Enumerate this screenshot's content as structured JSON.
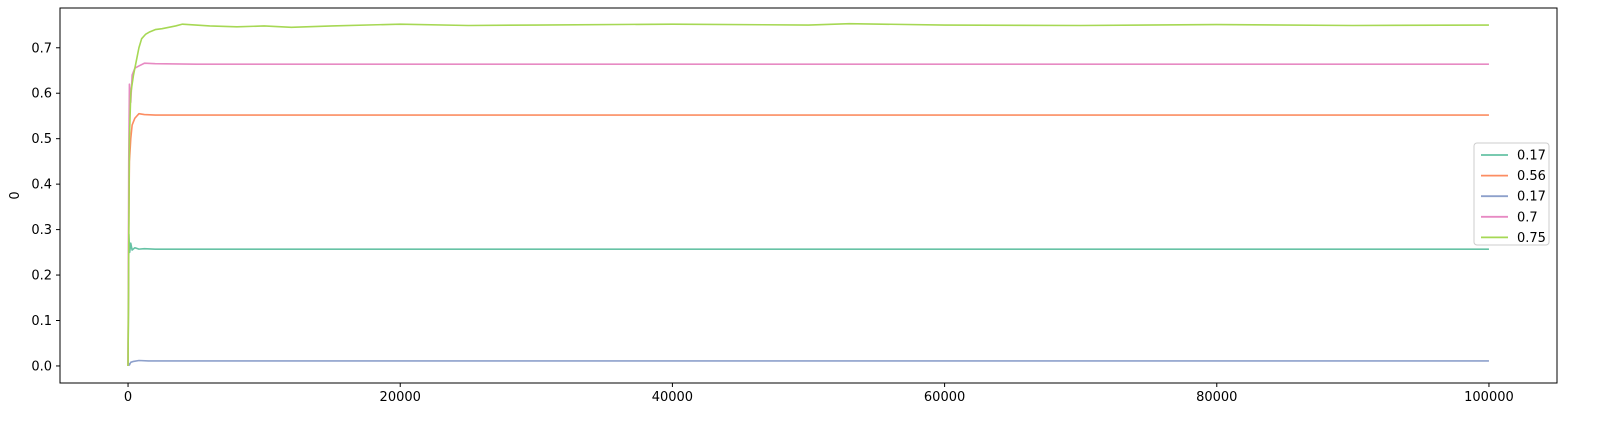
{
  "chart_data": {
    "type": "line",
    "title": "",
    "xlabel": "",
    "ylabel": "0",
    "xlim": [
      -5000,
      105000
    ],
    "ylim": [
      -0.0375,
      0.7875
    ],
    "xticks": [
      0,
      20000,
      40000,
      60000,
      80000,
      100000
    ],
    "xtick_labels": [
      "0",
      "20000",
      "40000",
      "60000",
      "80000",
      "100000"
    ],
    "yticks": [
      0.0,
      0.1,
      0.2,
      0.3,
      0.4,
      0.5,
      0.6,
      0.7
    ],
    "ytick_labels": [
      "0.0",
      "0.1",
      "0.2",
      "0.3",
      "0.4",
      "0.5",
      "0.6",
      "0.7"
    ],
    "grid": false,
    "legend_position": "center-right",
    "series": [
      {
        "name": "0.17",
        "color": "#66c2a5",
        "x": [
          0,
          60,
          120,
          200,
          300,
          500,
          800,
          1200,
          2000,
          5000,
          10000,
          20000,
          40000,
          60000,
          80000,
          100000
        ],
        "y": [
          0.0,
          0.29,
          0.25,
          0.27,
          0.255,
          0.26,
          0.257,
          0.258,
          0.257,
          0.257,
          0.257,
          0.257,
          0.257,
          0.257,
          0.257,
          0.257
        ]
      },
      {
        "name": "0.56",
        "color": "#fc8d62",
        "x": [
          0,
          50,
          100,
          200,
          300,
          500,
          800,
          1200,
          2000,
          5000,
          10000,
          20000,
          40000,
          60000,
          80000,
          100000
        ],
        "y": [
          0.0,
          0.3,
          0.45,
          0.5,
          0.53,
          0.545,
          0.555,
          0.553,
          0.552,
          0.552,
          0.552,
          0.552,
          0.552,
          0.552,
          0.552,
          0.552
        ]
      },
      {
        "name": "0.17",
        "color": "#8da0cb",
        "x": [
          0,
          50,
          100,
          200,
          400,
          800,
          1500,
          5000,
          20000,
          40000,
          60000,
          80000,
          100000
        ],
        "y": [
          0.0,
          0.005,
          0.002,
          0.008,
          0.01,
          0.012,
          0.011,
          0.011,
          0.011,
          0.011,
          0.011,
          0.011,
          0.011
        ]
      },
      {
        "name": "0.7",
        "color": "#e78ac3",
        "x": [
          0,
          50,
          100,
          200,
          300,
          500,
          800,
          1200,
          2000,
          5000,
          10000,
          20000,
          40000,
          60000,
          80000,
          100000
        ],
        "y": [
          0.0,
          0.45,
          0.62,
          0.58,
          0.64,
          0.655,
          0.66,
          0.666,
          0.665,
          0.664,
          0.664,
          0.664,
          0.664,
          0.664,
          0.664,
          0.664
        ]
      },
      {
        "name": "0.75",
        "color": "#a6d854",
        "x": [
          0,
          100,
          200,
          400,
          600,
          800,
          1000,
          1300,
          1600,
          2000,
          2500,
          3000,
          3500,
          4000,
          5000,
          6000,
          8000,
          10000,
          12000,
          15000,
          20000,
          25000,
          30000,
          40000,
          50000,
          53000,
          60000,
          70000,
          80000,
          90000,
          100000
        ],
        "y": [
          0.0,
          0.5,
          0.6,
          0.64,
          0.67,
          0.7,
          0.72,
          0.73,
          0.735,
          0.74,
          0.742,
          0.745,
          0.748,
          0.752,
          0.75,
          0.748,
          0.746,
          0.748,
          0.745,
          0.748,
          0.752,
          0.749,
          0.75,
          0.752,
          0.75,
          0.753,
          0.75,
          0.749,
          0.751,
          0.749,
          0.75
        ]
      }
    ]
  }
}
